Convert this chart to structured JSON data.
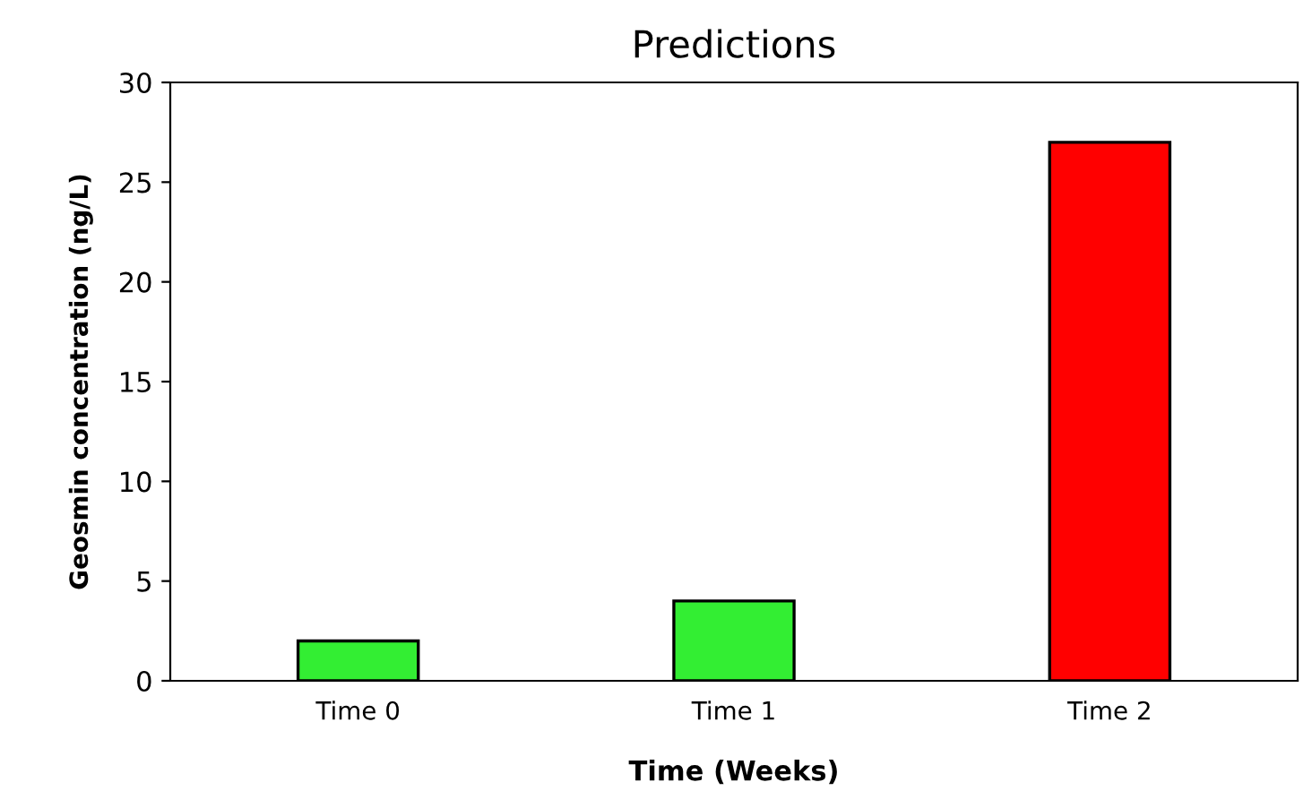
{
  "chart_data": {
    "type": "bar",
    "title": "Predictions",
    "xlabel": "Time (Weeks)",
    "ylabel": "Geosmin concentration (ng/L)",
    "categories": [
      "Time 0",
      "Time 1",
      "Time 2"
    ],
    "values": [
      2,
      4,
      27
    ],
    "colors": [
      "#33ee33",
      "#33ee33",
      "#ff0000"
    ],
    "ylim": [
      0,
      30
    ],
    "yticks": [
      0,
      5,
      10,
      15,
      20,
      25,
      30
    ],
    "grid": false
  }
}
